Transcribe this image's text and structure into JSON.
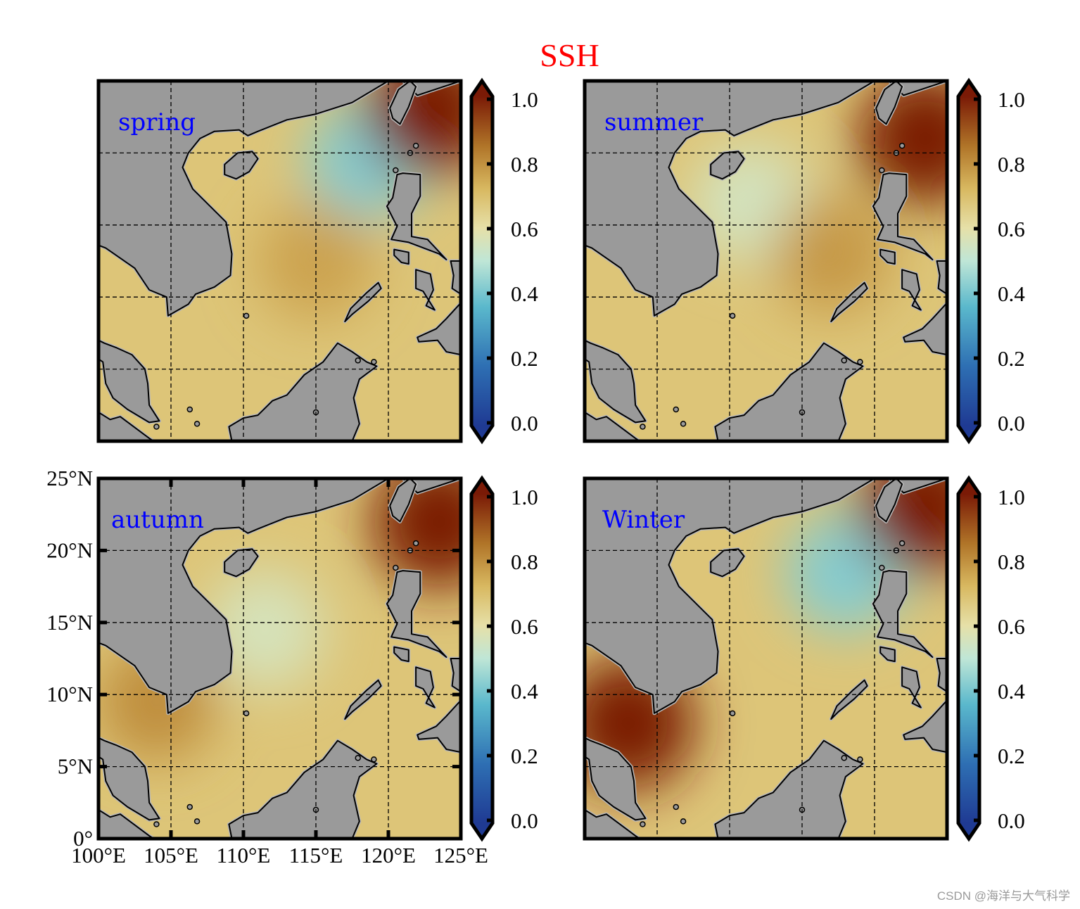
{
  "figure": {
    "title": "SSH",
    "title_color": "#ff0000",
    "watermark": "CSDN @海洋与大气科学"
  },
  "chart_data": [
    {
      "type": "heatmap",
      "label": "spring",
      "label_color": "#0000ff",
      "xlim": [
        100,
        125
      ],
      "ylim": [
        0,
        25
      ],
      "grid": true,
      "xticks": [
        105,
        110,
        115,
        120
      ],
      "yticks": [
        5,
        10,
        15,
        20
      ],
      "hotspots": [
        {
          "lon": 118.5,
          "lat": 19.5,
          "value": 0.42
        },
        {
          "lon": 115.0,
          "lat": 12.5,
          "value": 0.76
        },
        {
          "lon": 123.0,
          "lat": 23.0,
          "value": 1.0
        }
      ],
      "colorbar": {
        "min": 0.0,
        "max": 1.0,
        "ticks": [
          "0.0",
          "0.2",
          "0.4",
          "0.6",
          "0.8",
          "1.0"
        ],
        "extend": "both"
      }
    },
    {
      "type": "heatmap",
      "label": "summer",
      "label_color": "#0000ff",
      "xlim": [
        100,
        125
      ],
      "ylim": [
        0,
        25
      ],
      "grid": true,
      "xticks": [
        105,
        110,
        115,
        120
      ],
      "yticks": [
        5,
        10,
        15,
        20
      ],
      "hotspots": [
        {
          "lon": 111.5,
          "lat": 16.5,
          "value": 0.55
        },
        {
          "lon": 117.0,
          "lat": 13.0,
          "value": 0.78
        },
        {
          "lon": 123.5,
          "lat": 21.0,
          "value": 1.0
        }
      ],
      "colorbar": {
        "min": 0.0,
        "max": 1.0,
        "ticks": [
          "0.0",
          "0.2",
          "0.4",
          "0.6",
          "0.8",
          "1.0"
        ],
        "extend": "both"
      }
    },
    {
      "type": "heatmap",
      "label": "autumn",
      "label_color": "#0000ff",
      "xlim": [
        100,
        125
      ],
      "ylim": [
        0,
        25
      ],
      "xlabels": [
        "100°E",
        "105°E",
        "110°E",
        "115°E",
        "120°E",
        "125°E"
      ],
      "ylabels": [
        "0°",
        "5°N",
        "10°N",
        "15°N",
        "20°N",
        "25°N"
      ],
      "grid": true,
      "xticks": [
        105,
        110,
        115,
        120
      ],
      "yticks": [
        5,
        10,
        15,
        20
      ],
      "hotspots": [
        {
          "lon": 111.5,
          "lat": 14.5,
          "value": 0.56
        },
        {
          "lon": 104.0,
          "lat": 9.5,
          "value": 0.8
        },
        {
          "lon": 123.5,
          "lat": 22.0,
          "value": 1.0
        }
      ],
      "colorbar": {
        "min": 0.0,
        "max": 1.0,
        "ticks": [
          "0.0",
          "0.2",
          "0.4",
          "0.6",
          "0.8",
          "1.0"
        ],
        "extend": "both"
      }
    },
    {
      "type": "heatmap",
      "label": "Winter",
      "label_color": "#0000ff",
      "xlim": [
        100,
        125
      ],
      "ylim": [
        0,
        25
      ],
      "grid": true,
      "xticks": [
        105,
        110,
        115,
        120
      ],
      "yticks": [
        5,
        10,
        15,
        20
      ],
      "hotspots": [
        {
          "lon": 118.0,
          "lat": 18.5,
          "value": 0.42
        },
        {
          "lon": 103.0,
          "lat": 8.0,
          "value": 1.0
        },
        {
          "lon": 123.5,
          "lat": 23.0,
          "value": 1.0
        }
      ],
      "colorbar": {
        "min": 0.0,
        "max": 1.0,
        "ticks": [
          "0.0",
          "0.2",
          "0.4",
          "0.6",
          "0.8",
          "1.0"
        ],
        "extend": "both"
      }
    }
  ]
}
